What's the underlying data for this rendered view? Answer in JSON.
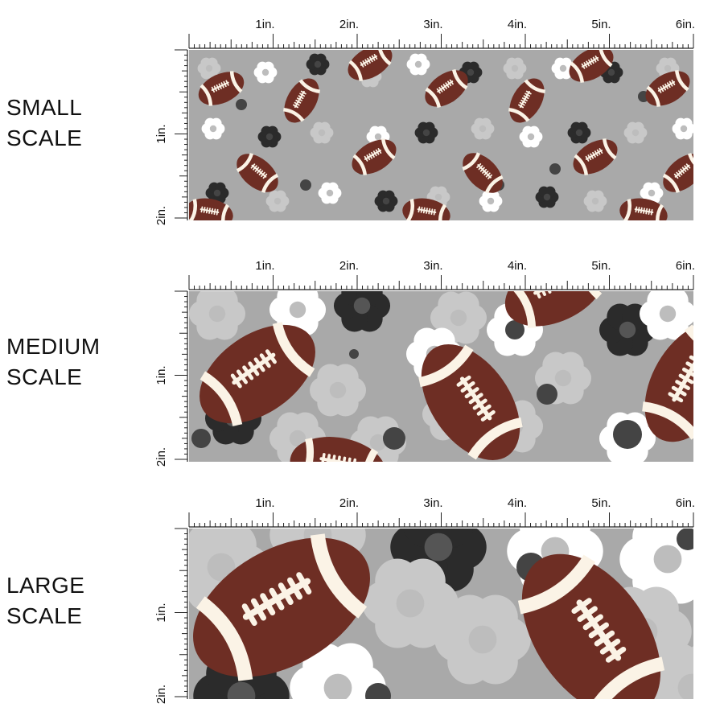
{
  "rows": [
    {
      "label_line1": "SMALL",
      "label_line2": "SCALE",
      "scale": "small"
    },
    {
      "label_line1": "MEDIUM",
      "label_line2": "SCALE",
      "scale": "medium"
    },
    {
      "label_line1": "LARGE",
      "label_line2": "SCALE",
      "scale": "large"
    }
  ],
  "ruler": {
    "top_labels": [
      "1in.",
      "2in.",
      "3in.",
      "4in.",
      "5in.",
      "6in."
    ],
    "side_labels": [
      "1in.",
      "2in."
    ]
  },
  "colors": {
    "background_gray": "#a9a9a9",
    "light_flower": "#c8c8c8",
    "white_flower": "#ffffff",
    "black_flower": "#2b2b2b",
    "dark_dot": "#444444",
    "football_brown": "#6e2e24",
    "football_stripe": "#fbf3e6"
  }
}
